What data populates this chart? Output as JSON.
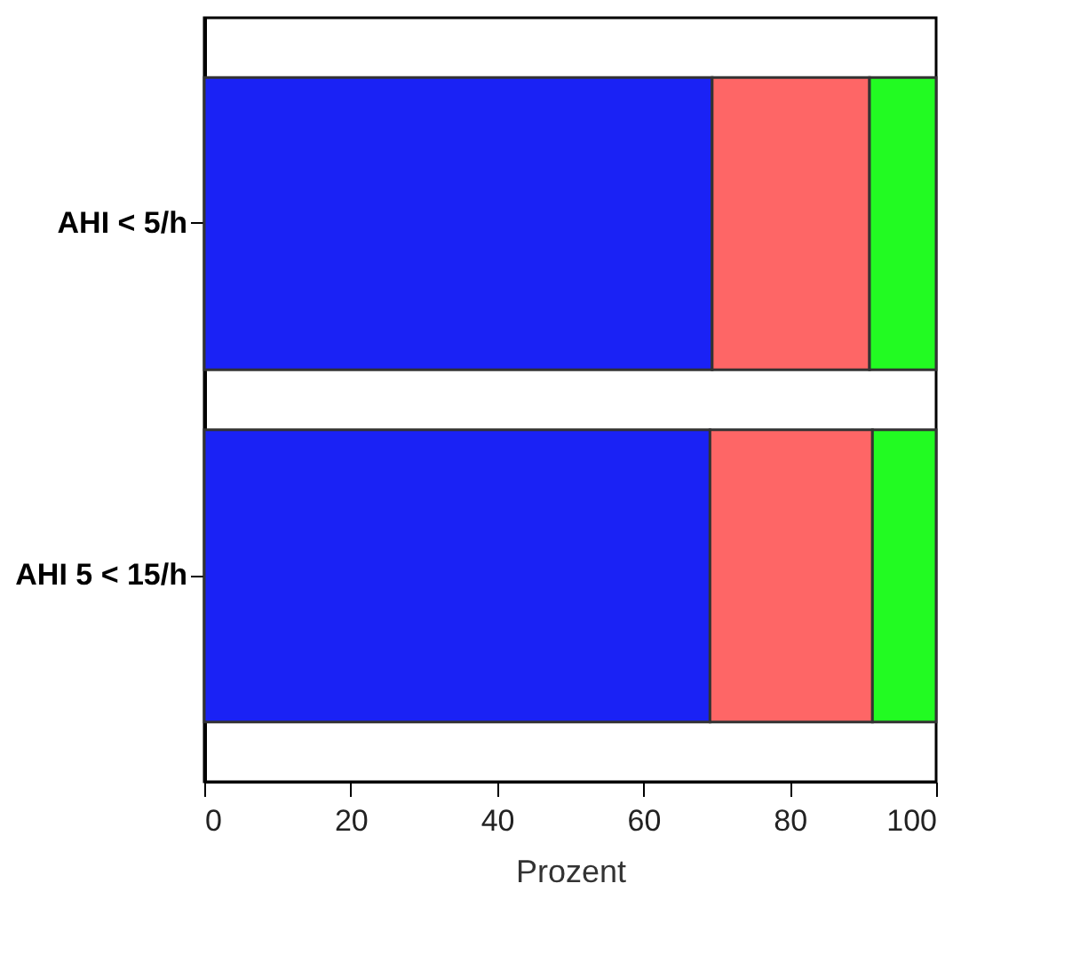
{
  "chart_data": {
    "type": "bar",
    "orientation": "horizontal",
    "stacked": true,
    "xlabel": "Prozent",
    "categories": [
      "AHI < 5/h",
      "AHI 5 < 15/h"
    ],
    "series": [
      {
        "color": "#1a22f5",
        "values": [
          69.4,
          69.1
        ]
      },
      {
        "color": "#fe6666",
        "values": [
          21.5,
          22.2
        ]
      },
      {
        "color": "#22fb22",
        "values": [
          9.1,
          8.7
        ]
      }
    ],
    "xlim": [
      0,
      100
    ],
    "xticks": [
      0,
      20,
      40,
      60,
      80,
      100
    ],
    "grid": false,
    "legend": false
  }
}
